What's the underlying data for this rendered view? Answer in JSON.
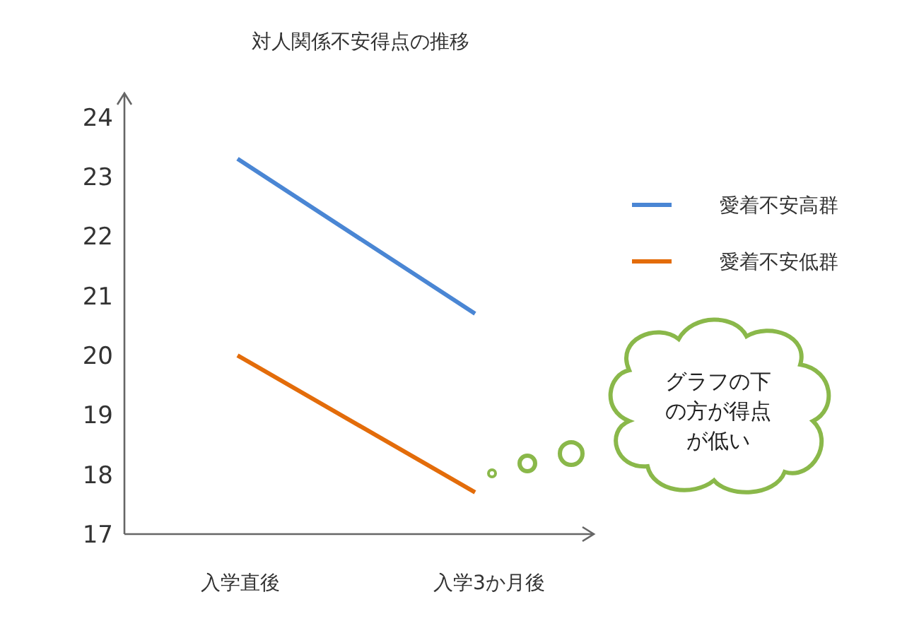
{
  "chart_data": {
    "type": "line",
    "title": "対人関係不安得点の推移",
    "categories": [
      "入学直後",
      "入学3か月後"
    ],
    "series": [
      {
        "name": "愛着不安高群",
        "color": "#4a86d4",
        "values": [
          23.3,
          20.7
        ]
      },
      {
        "name": "愛着不安低群",
        "color": "#e36c0a",
        "values": [
          20.0,
          17.7
        ]
      }
    ],
    "ylim": [
      17,
      24.4
    ],
    "yticks": [
      17,
      18,
      19,
      20,
      21,
      22,
      23,
      24
    ],
    "grid": false,
    "legend": "right",
    "marker": "none",
    "line_style": "solid",
    "annotations": [
      "グラフの下の方が得点が低い"
    ]
  }
}
